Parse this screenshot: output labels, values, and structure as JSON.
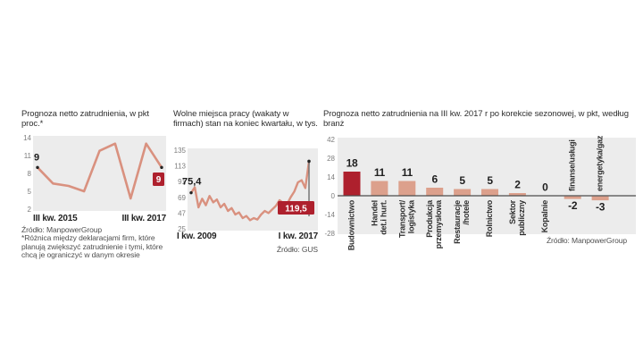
{
  "colors": {
    "accent_red": "#ae202d",
    "line_salmon": "#d9917f",
    "bar_salmon": "#dca08c",
    "plot_bg": "#ececec",
    "zero_axis": "#4d4d4d",
    "stem_gray": "#6e6e6e",
    "dot_dark": "#222222"
  },
  "chart_data": [
    {
      "type": "line",
      "title": "Prognoza netto zatrudnienia, w pkt proc.*",
      "source": "Źródło: ManpowerGroup",
      "footnote": "*Różnica między deklaracjami firm, które planują zwiększyć zatrudnienie i tymi, które chcą je ograniczyć w danym okresie",
      "ylim": [
        2,
        14
      ],
      "y_ticks": [
        14,
        11,
        8,
        5,
        2
      ],
      "x_axis_labels": [
        "III kw. 2015",
        "III kw. 2017"
      ],
      "values": [
        9,
        6.3,
        5.9,
        5,
        11.8,
        13,
        3.8,
        13,
        9
      ],
      "first_point_label": "9",
      "last_point_label": "9",
      "grid": false,
      "legend": null
    },
    {
      "type": "line",
      "title": "Wolne miejsca pracy (wakaty w firmach) stan na koniec kwartału, w tys.",
      "source": "Źródło: GUS",
      "ylim": [
        25,
        135
      ],
      "y_ticks": [
        135,
        113,
        91,
        69,
        47,
        25
      ],
      "x_axis_labels": [
        "I kw. 2009",
        "I kw. 2017"
      ],
      "values": [
        75.4,
        83,
        55,
        67,
        58,
        71,
        62,
        66,
        55,
        60,
        50,
        54,
        45,
        48,
        40,
        43,
        37,
        40,
        38,
        45,
        50,
        47,
        52,
        57,
        65,
        61,
        59,
        69,
        77,
        90,
        93,
        82,
        119.5
      ],
      "first_point_label": "75,4",
      "last_point_label": "119,5",
      "last_point_stem": true,
      "grid": false,
      "legend": null
    },
    {
      "type": "bar",
      "title": "Prognoza netto zatrudnienia na III kw. 2017 r po korekcie sezonowej, w pkt, według branż",
      "source": "Źródło: ManpowerGroup",
      "ylim": [
        -28,
        42
      ],
      "y_ticks": [
        42,
        28,
        14,
        0,
        -14,
        -28
      ],
      "categories": [
        [
          "Budownictwo"
        ],
        [
          "Handel",
          "det.i hurt."
        ],
        [
          "Transport/",
          "logistyka"
        ],
        [
          "Produkcja",
          "przemysłowa"
        ],
        [
          "Restauracje",
          "/hotele"
        ],
        [
          "Rolnictwo"
        ],
        [
          "Sektor",
          "publiczny"
        ],
        [
          "Kopalnie"
        ],
        [
          "finanse/usługi"
        ],
        [
          "energetyka/gaz"
        ]
      ],
      "values": [
        18,
        11,
        11,
        6,
        5,
        5,
        2,
        0,
        -2,
        -3
      ],
      "value_labels": [
        "18",
        "11",
        "11",
        "6",
        "5",
        "5",
        "2",
        "0",
        "-2",
        "-3"
      ],
      "highlight_index": 0,
      "grid": false,
      "legend": null
    }
  ]
}
